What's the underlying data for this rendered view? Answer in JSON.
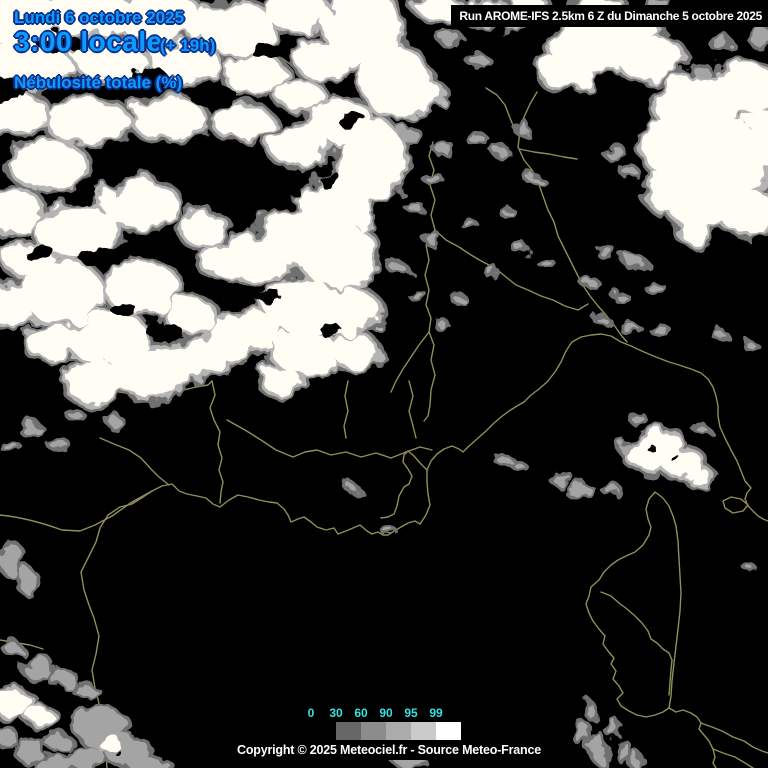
{
  "header": {
    "date": "Lundi 6 octobre 2025",
    "time": "3:00 locale",
    "offset": "(+ 19h)",
    "variable": "Nébulosité totale (%)"
  },
  "run_info": {
    "text": "Run AROME-IFS 2.5km 6 Z du Dimanche 5 octobre 2025"
  },
  "legend": {
    "values": [
      "0",
      "30",
      "60",
      "90",
      "95",
      "99"
    ],
    "box_colors": [
      "#000000",
      "#666666",
      "#8c8c8c",
      "#ababab",
      "#cbcbcb",
      "#ffffff"
    ]
  },
  "footer": {
    "copyright": "Copyright © 2025 Meteociel.fr - Source Meteo-France"
  },
  "colors": {
    "header_text": "#0c9cfe",
    "header_outline": "#0d2f8a",
    "legend_text": "#39e2e2",
    "border_line": "#8f8f5a",
    "run_text": "#ffffff",
    "sea": "#000000",
    "cloud_core": "#fffdf4",
    "cloud_mid": "#b4b4b4",
    "cloud_fringe": "#6f6f6f",
    "cloud_gray": "#a4a4a4"
  },
  "map": {
    "clouds": [
      [
        15,
        18,
        50,
        26,
        "w"
      ],
      [
        85,
        12,
        48,
        22,
        "w"
      ],
      [
        160,
        18,
        42,
        24,
        "w"
      ],
      [
        235,
        28,
        38,
        26,
        "w"
      ],
      [
        298,
        12,
        30,
        20,
        "w"
      ],
      [
        28,
        62,
        42,
        24,
        "w"
      ],
      [
        110,
        58,
        36,
        20,
        "w"
      ],
      [
        185,
        62,
        34,
        18,
        "w"
      ],
      [
        255,
        75,
        30,
        18,
        "w"
      ],
      [
        12,
        112,
        34,
        20,
        "w"
      ],
      [
        88,
        122,
        40,
        22,
        "w"
      ],
      [
        168,
        118,
        36,
        20,
        "w"
      ],
      [
        242,
        122,
        28,
        16,
        "w"
      ],
      [
        300,
        95,
        22,
        14,
        "w"
      ],
      [
        48,
        165,
        38,
        22,
        "w"
      ],
      [
        12,
        210,
        28,
        22,
        "w"
      ],
      [
        78,
        232,
        42,
        26,
        "w"
      ],
      [
        140,
        205,
        38,
        24,
        "w"
      ],
      [
        30,
        260,
        24,
        16,
        "w"
      ],
      [
        62,
        292,
        40,
        30,
        "w"
      ],
      [
        10,
        305,
        22,
        20,
        "w"
      ],
      [
        142,
        288,
        36,
        26,
        "w"
      ],
      [
        108,
        338,
        40,
        26,
        "w"
      ],
      [
        52,
        342,
        26,
        16,
        "w"
      ],
      [
        150,
        372,
        40,
        24,
        "w"
      ],
      [
        95,
        382,
        30,
        20,
        "w"
      ],
      [
        198,
        358,
        26,
        18,
        "w"
      ],
      [
        235,
        338,
        30,
        22,
        "w"
      ],
      [
        190,
        315,
        24,
        16,
        "w"
      ],
      [
        222,
        262,
        20,
        14,
        "w"
      ],
      [
        205,
        230,
        22,
        16,
        "w"
      ],
      [
        362,
        28,
        38,
        40,
        "w"
      ],
      [
        395,
        82,
        32,
        36,
        "w"
      ],
      [
        322,
        60,
        26,
        18,
        "w"
      ],
      [
        340,
        120,
        30,
        22,
        "w"
      ],
      [
        300,
        145,
        30,
        20,
        "w"
      ],
      [
        372,
        160,
        32,
        40,
        "w"
      ],
      [
        335,
        205,
        36,
        28,
        "w"
      ],
      [
        300,
        238,
        40,
        28,
        "w"
      ],
      [
        258,
        258,
        30,
        20,
        "w"
      ],
      [
        338,
        255,
        38,
        32,
        "w"
      ],
      [
        300,
        305,
        36,
        28,
        "w"
      ],
      [
        348,
        312,
        30,
        24,
        "w"
      ],
      [
        258,
        330,
        26,
        18,
        "w"
      ],
      [
        305,
        352,
        32,
        22,
        "w"
      ],
      [
        355,
        352,
        22,
        15,
        "w"
      ],
      [
        283,
        382,
        20,
        12,
        "w"
      ],
      [
        440,
        8,
        22,
        10,
        "w"
      ],
      [
        492,
        14,
        26,
        12,
        "w"
      ],
      [
        528,
        6,
        18,
        8,
        "w"
      ],
      [
        418,
        95,
        24,
        16,
        "w"
      ],
      [
        592,
        45,
        42,
        26,
        "w"
      ],
      [
        650,
        58,
        32,
        22,
        "w"
      ],
      [
        566,
        72,
        26,
        16,
        "w"
      ],
      [
        628,
        28,
        28,
        14,
        "w"
      ],
      [
        600,
        8,
        24,
        10,
        "w"
      ],
      [
        700,
        108,
        42,
        32,
        "w"
      ],
      [
        745,
        88,
        32,
        26,
        "w"
      ],
      [
        682,
        148,
        38,
        32,
        "w"
      ],
      [
        732,
        158,
        40,
        36,
        "w"
      ],
      [
        700,
        202,
        32,
        26,
        "w"
      ],
      [
        748,
        212,
        28,
        22,
        "w"
      ],
      [
        668,
        192,
        22,
        18,
        "w"
      ],
      [
        695,
        232,
        15,
        10,
        "w"
      ],
      [
        762,
        130,
        16,
        20,
        "w"
      ],
      [
        652,
        453,
        26,
        16,
        "w"
      ],
      [
        682,
        463,
        20,
        13,
        "w"
      ],
      [
        700,
        477,
        11,
        8,
        "w"
      ],
      [
        664,
        441,
        16,
        10,
        "w"
      ],
      [
        14,
        704,
        18,
        13,
        "w"
      ],
      [
        40,
        716,
        12,
        8,
        "w"
      ],
      [
        110,
        743,
        12,
        7,
        "w"
      ],
      [
        30,
        428,
        10,
        5,
        "g"
      ],
      [
        12,
        448,
        7,
        4,
        "g"
      ],
      [
        58,
        444,
        9,
        4,
        "g"
      ],
      [
        115,
        422,
        7,
        4,
        "g"
      ],
      [
        137,
        388,
        8,
        4,
        "g"
      ],
      [
        75,
        415,
        6,
        4,
        "g"
      ],
      [
        452,
        40,
        10,
        6,
        "g"
      ],
      [
        478,
        60,
        9,
        5,
        "g"
      ],
      [
        408,
        135,
        11,
        6,
        "g"
      ],
      [
        443,
        148,
        8,
        5,
        "g"
      ],
      [
        478,
        140,
        8,
        4,
        "g"
      ],
      [
        502,
        153,
        6,
        4,
        "g"
      ],
      [
        522,
        128,
        7,
        4,
        "g"
      ],
      [
        432,
        178,
        7,
        4,
        "g"
      ],
      [
        415,
        208,
        6,
        4,
        "g"
      ],
      [
        432,
        238,
        7,
        4,
        "g"
      ],
      [
        398,
        268,
        7,
        4,
        "g"
      ],
      [
        420,
        298,
        6,
        3,
        "g"
      ],
      [
        442,
        325,
        5,
        3,
        "g"
      ],
      [
        460,
        300,
        5,
        3,
        "g"
      ],
      [
        490,
        270,
        5,
        3,
        "g"
      ],
      [
        470,
        225,
        5,
        3,
        "g"
      ],
      [
        505,
        210,
        5,
        3,
        "g"
      ],
      [
        535,
        180,
        6,
        3,
        "g"
      ],
      [
        520,
        248,
        5,
        3,
        "g"
      ],
      [
        545,
        262,
        5,
        3,
        "g"
      ],
      [
        762,
        38,
        12,
        8,
        "g"
      ],
      [
        722,
        44,
        9,
        6,
        "g"
      ],
      [
        684,
        18,
        8,
        5,
        "g"
      ],
      [
        660,
        5,
        10,
        5,
        "g"
      ],
      [
        700,
        70,
        8,
        5,
        "g"
      ],
      [
        614,
        152,
        9,
        6,
        "g"
      ],
      [
        630,
        172,
        7,
        4,
        "g"
      ],
      [
        648,
        135,
        7,
        4,
        "g"
      ],
      [
        606,
        252,
        7,
        4,
        "g"
      ],
      [
        636,
        263,
        9,
        5,
        "g"
      ],
      [
        590,
        283,
        6,
        4,
        "g"
      ],
      [
        655,
        288,
        7,
        4,
        "g"
      ],
      [
        622,
        298,
        5,
        3,
        "g"
      ],
      [
        600,
        318,
        5,
        3,
        "g"
      ],
      [
        660,
        330,
        7,
        4,
        "g"
      ],
      [
        632,
        330,
        8,
        4,
        "g"
      ],
      [
        722,
        337,
        5,
        3,
        "g"
      ],
      [
        750,
        345,
        4,
        3,
        "g"
      ],
      [
        628,
        448,
        9,
        6,
        "g"
      ],
      [
        612,
        490,
        7,
        4,
        "g"
      ],
      [
        582,
        489,
        9,
        4,
        "g"
      ],
      [
        638,
        419,
        6,
        4,
        "g"
      ],
      [
        700,
        428,
        5,
        3,
        "g"
      ],
      [
        565,
        478,
        6,
        3,
        "g"
      ],
      [
        747,
        565,
        3,
        2,
        "g"
      ],
      [
        506,
        462,
        7,
        3,
        "g"
      ],
      [
        518,
        465,
        5,
        2,
        "g"
      ],
      [
        560,
        480,
        7,
        4,
        "g"
      ],
      [
        574,
        492,
        6,
        3,
        "g"
      ],
      [
        388,
        530,
        5,
        2,
        "g"
      ],
      [
        352,
        488,
        4,
        2,
        "g"
      ],
      [
        10,
        558,
        11,
        16,
        "g"
      ],
      [
        26,
        580,
        9,
        11,
        "g"
      ],
      [
        14,
        650,
        7,
        5,
        "g"
      ],
      [
        38,
        668,
        15,
        10,
        "g"
      ],
      [
        64,
        680,
        12,
        8,
        "g"
      ],
      [
        86,
        691,
        11,
        4,
        "g"
      ],
      [
        102,
        728,
        26,
        20,
        "g"
      ],
      [
        128,
        752,
        22,
        15,
        "g"
      ],
      [
        88,
        757,
        17,
        10,
        "g"
      ],
      [
        58,
        742,
        12,
        8,
        "g"
      ],
      [
        30,
        750,
        15,
        10,
        "g"
      ],
      [
        4,
        735,
        10,
        8,
        "g"
      ],
      [
        150,
        766,
        20,
        8,
        "g"
      ],
      [
        60,
        766,
        25,
        8,
        "g"
      ],
      [
        412,
        752,
        24,
        13,
        "g"
      ],
      [
        430,
        740,
        13,
        7,
        "g"
      ],
      [
        582,
        733,
        5,
        12,
        "g"
      ],
      [
        598,
        748,
        6,
        14,
        "g"
      ],
      [
        613,
        728,
        4,
        9,
        "g"
      ],
      [
        624,
        752,
        5,
        10,
        "g"
      ],
      [
        590,
        710,
        3,
        7,
        "g"
      ],
      [
        637,
        762,
        4,
        8,
        "g"
      ],
      [
        60,
        44,
        22,
        11,
        "h"
      ],
      [
        145,
        80,
        26,
        12,
        "h"
      ],
      [
        212,
        95,
        24,
        12,
        "h"
      ],
      [
        0,
        90,
        26,
        14,
        "h"
      ],
      [
        272,
        52,
        20,
        10,
        "h"
      ],
      [
        100,
        258,
        20,
        10,
        "h"
      ],
      [
        38,
        252,
        16,
        8,
        "h"
      ],
      [
        165,
        332,
        18,
        9,
        "h"
      ],
      [
        122,
        308,
        13,
        7,
        "h"
      ],
      [
        85,
        195,
        16,
        8,
        "h"
      ],
      [
        352,
        120,
        15,
        8,
        "h"
      ],
      [
        282,
        192,
        18,
        9,
        "h"
      ],
      [
        388,
        225,
        12,
        16,
        "h"
      ],
      [
        330,
        180,
        13,
        7,
        "h"
      ],
      [
        270,
        298,
        14,
        7,
        "h"
      ],
      [
        330,
        330,
        12,
        6,
        "h"
      ],
      [
        655,
        452,
        5,
        3,
        "h"
      ],
      [
        673,
        456,
        5,
        3,
        "h"
      ],
      [
        118,
        753,
        3,
        3,
        "h"
      ]
    ],
    "borders": [
      "M0,515 C20,517 40,522 62,530 L80,531 95,525 112,516 132,502 152,491",
      "M0,640 L18,643 30,645 43,649",
      "M152,491 L143,497 132,504 120,507 108,515 100,528 96,542 89,556 81,572 84,590 89,605 94,618 99,636 96,654 92,670 95,688 99,703 96,718 99,738 106,755 107,768",
      "M152,491 L162,486 172,484 179,491 187,494 197,496 206,498 213,504 220,507 229,500 238,495 248,497 259,500 269,502 277,503 284,509 288,515 291,522 298,519 304,517 311,522 317,527 326,530 334,528 338,534 346,531 353,528 360,525 367,531 372,534 378,532 383,535 388,535 394,531 401,527 408,523 415,521 420,524",
      "M420,524 L426,515 430,505 428,494 427,482 427,470 431,461 437,454 444,449 452,446 459,449 463,452 468,447",
      "M427,470 L421,464 414,456 408,451 404,455 403,462 408,469 412,476 409,484 404,487 399,496 397,506 394,514 388,517 381,518",
      "M382,531 L391,533",
      "M468,447 L477,439 486,431 493,424 501,417 509,411 517,406 524,402 531,395 539,389 547,382 555,372 561,362 566,351 572,342 581,337 591,335 601,334 611,336 621,342 631,346 644,352 656,357 669,362 679,365 691,369 701,373 708,379 713,387 716,396 718,406 718,416 720,427 725,438 731,450 737,461 741,471 745,481 751,488 747,493 745,499 748,506 753,511 758,516 763,519 768,521",
      "M723,501 L731,497 741,499 748,505 743,511 733,513 725,508 Z",
      "M655,492 L649,499 646,509 648,519 651,527 649,535 643,545 635,552 626,556 618,560 611,565 604,572 599,580 591,587 589,596 586,604 589,613 593,621 599,629 605,636 603,644 608,651 614,658 611,664 616,671 613,679 619,686 623,693 617,699 621,706 629,711 637,715 646,717 655,715 663,712 669,708",
      "M655,492 L663,498 669,506 673,516 676,526 678,541 679,559 680,576 681,593 680,611 678,629 676,646 674,663 672,681 671,696 669,708",
      "M601,592 L611,596 619,603 627,609 635,616 642,623 648,631 651,639 657,643 663,649 669,653 672,660 671,670 670,682 669,695",
      "M669,708 L676,712 683,710 691,713 697,717 701,723 699,729 704,735 709,741 713,749 715,757 713,763 716,768",
      "M701,723 L712,727 722,731 733,737 744,741 753,747 762,751 768,753",
      "M713,749 L723,753 735,757 745,763 753,768",
      "M537,92 L530,104 524,117 520,131 518,147 524,160 532,170 538,182 543,196 548,210 554,222 558,236 564,248 570,260 576,272 582,284 590,296 598,306 606,315 614,325 621,335 627,342",
      "M519,149 L534,152 549,154 564,157 577,159",
      "M433,142 L429,156 434,170 430,185 435,200 431,215 435,230 426,245 429,260 425,275 429,290 426,305 431,318 429,332 434,345 431,360 435,375 431,390 430,405 428,416 424,421",
      "M435,230 L446,240 459,247 471,255 483,262 495,268 506,277 516,285 528,290 541,296 553,300 565,306 578,310 588,304",
      "M429,332 L419,345 411,357 403,369 396,381 391,392",
      "M227,420 L245,430 261,440 276,450 293,457 305,452 317,450 331,455 346,452 361,457 376,453 391,458 406,452 420,447 432,450",
      "M212,381 L215,395 210,408 214,420 220,432 218,445 222,458 219,470 223,482 221,492 220,503",
      "M100,438 L114,444 129,450 141,458 150,468 159,477 169,485",
      "M100,393 L113,391 126,393 138,397 149,392 160,396 172,393 184,390 196,387 208,385 212,381",
      "M348,381 L345,396 348,411 344,426 346,438",
      "M409,381 L413,396 409,411 413,426 416,438",
      "M362,0 L368,14 364,29 369,44",
      "M200,30 L214,38 227,47 239,55",
      "M282,58 L296,69 308,80",
      "M320,94 L334,104 347,112",
      "M250,0 L257,12 252,24",
      "M486,88 L497,95 505,105 510,118 515,130"
    ]
  }
}
